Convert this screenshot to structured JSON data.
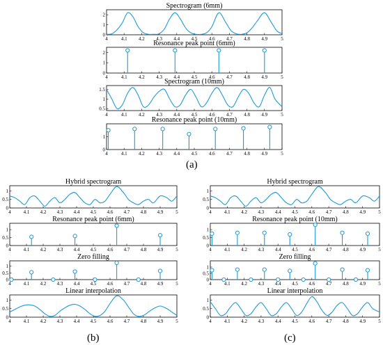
{
  "captions": {
    "a": "(a)",
    "b": "(b)",
    "c": "(c)"
  },
  "colors": {
    "line": "#1e9ad6",
    "axis": "#000000"
  },
  "chart_data": [
    {
      "id": "a1",
      "type": "line",
      "title": "Spectrogram (6mm)",
      "xlim": [
        4,
        5
      ],
      "ylim": [
        0,
        2.5
      ],
      "xticks": [
        4,
        4.1,
        4.2,
        4.3,
        4.4,
        4.5,
        4.6,
        4.7,
        4.8,
        4.9,
        5
      ],
      "yticks": [
        0,
        1,
        2
      ],
      "x": [
        4.0,
        4.03,
        4.06,
        4.09,
        4.12,
        4.15,
        4.18,
        4.21,
        4.24,
        4.27,
        4.3,
        4.33,
        4.36,
        4.39,
        4.42,
        4.45,
        4.48,
        4.51,
        4.54,
        4.57,
        4.6,
        4.64,
        4.68,
        4.71,
        4.74,
        4.77,
        4.8,
        4.83,
        4.86,
        4.9,
        4.94,
        4.97,
        5.0
      ],
      "y": [
        0.05,
        0.1,
        0.5,
        1.2,
        2.2,
        1.8,
        0.8,
        0.2,
        0.05,
        0.05,
        0.1,
        0.6,
        1.6,
        2.2,
        1.6,
        0.7,
        0.2,
        0.05,
        0.05,
        0.2,
        0.8,
        2.2,
        1.2,
        0.4,
        0.1,
        0.05,
        0.2,
        0.7,
        1.4,
        2.2,
        1.2,
        0.4,
        0.1
      ]
    },
    {
      "id": "a2",
      "type": "stem",
      "title": "Resonance peak point (6mm)",
      "xlim": [
        4,
        5
      ],
      "ylim": [
        0,
        2.5
      ],
      "xticks": [
        4,
        4.1,
        4.2,
        4.3,
        4.4,
        4.5,
        4.6,
        4.7,
        4.8,
        4.9,
        5
      ],
      "yticks": [
        0,
        1,
        2
      ],
      "x": [
        4.12,
        4.39,
        4.64,
        4.9
      ],
      "y": [
        2.2,
        2.2,
        2.2,
        2.2
      ]
    },
    {
      "id": "a3",
      "type": "line",
      "title": "Spectrogram (10mm)",
      "xlim": [
        4,
        5
      ],
      "ylim": [
        0.4,
        1.7
      ],
      "xticks": [
        4,
        4.1,
        4.2,
        4.3,
        4.4,
        4.5,
        4.6,
        4.7,
        4.8,
        4.9,
        5
      ],
      "yticks": [
        0.5,
        1,
        1.5
      ],
      "x": [
        4.0,
        4.03,
        4.06,
        4.09,
        4.12,
        4.15,
        4.18,
        4.21,
        4.24,
        4.27,
        4.3,
        4.33,
        4.36,
        4.39,
        4.42,
        4.45,
        4.48,
        4.51,
        4.54,
        4.57,
        4.6,
        4.63,
        4.66,
        4.69,
        4.72,
        4.75,
        4.78,
        4.81,
        4.84,
        4.87,
        4.9,
        4.93,
        4.96,
        5.0
      ],
      "y": [
        1.5,
        1.0,
        0.5,
        0.7,
        1.3,
        1.6,
        1.2,
        0.6,
        0.7,
        1.1,
        1.4,
        1.5,
        1.0,
        0.6,
        0.7,
        1.2,
        1.5,
        1.1,
        0.6,
        0.8,
        1.3,
        1.6,
        1.2,
        0.7,
        0.6,
        1.1,
        1.5,
        1.3,
        0.8,
        0.6,
        1.2,
        1.6,
        1.0,
        0.6
      ]
    },
    {
      "id": "a4",
      "type": "stem",
      "title": "Resonance peak point (10mm)",
      "xlim": [
        4,
        5
      ],
      "ylim": [
        0,
        2
      ],
      "xticks": [
        4,
        4.1,
        4.2,
        4.3,
        4.4,
        4.5,
        4.6,
        4.7,
        4.8,
        4.9,
        5
      ],
      "yticks": [
        0,
        1
      ],
      "x": [
        4.01,
        4.16,
        4.32,
        4.47,
        4.62,
        4.78,
        4.93
      ],
      "y": [
        1.5,
        1.6,
        1.6,
        1.2,
        1.6,
        1.65,
        1.75
      ]
    },
    {
      "id": "b1",
      "type": "line",
      "title": "Hybrid spectrogram",
      "xlim": [
        4,
        5
      ],
      "ylim": [
        0,
        1.3
      ],
      "xticks": [
        4,
        4.1,
        4.2,
        4.3,
        4.4,
        4.5,
        4.6,
        4.7,
        4.8,
        4.9,
        5
      ],
      "yticks": [
        0,
        0.5,
        1
      ],
      "x": [
        4.0,
        4.03,
        4.06,
        4.09,
        4.12,
        4.15,
        4.18,
        4.21,
        4.24,
        4.27,
        4.3,
        4.33,
        4.36,
        4.39,
        4.42,
        4.45,
        4.48,
        4.51,
        4.54,
        4.57,
        4.6,
        4.64,
        4.68,
        4.71,
        4.74,
        4.77,
        4.8,
        4.83,
        4.86,
        4.9,
        4.94,
        4.97,
        5.0
      ],
      "y": [
        0.7,
        0.6,
        0.4,
        0.2,
        0.6,
        0.7,
        0.4,
        0.1,
        0.4,
        0.6,
        0.3,
        0.5,
        0.8,
        0.9,
        0.6,
        0.3,
        0.2,
        0.5,
        0.3,
        0.4,
        0.8,
        1.25,
        0.9,
        0.5,
        0.3,
        0.2,
        0.4,
        0.5,
        0.3,
        0.7,
        0.6,
        0.4,
        0.7
      ]
    },
    {
      "id": "b2",
      "type": "stem",
      "title": "Resonance peak point (6mm)",
      "xlim": [
        4,
        5
      ],
      "ylim": [
        0,
        1.4
      ],
      "xticks": [
        4,
        4.1,
        4.2,
        4.3,
        4.4,
        4.5,
        4.6,
        4.7,
        4.8,
        4.9,
        5
      ],
      "yticks": [
        0,
        0.5,
        1
      ],
      "x": [
        4.13,
        4.39,
        4.64,
        4.9
      ],
      "y": [
        0.55,
        0.6,
        1.25,
        0.65
      ]
    },
    {
      "id": "b3",
      "type": "stem",
      "title": "Zero filling",
      "xlim": [
        4,
        5
      ],
      "ylim": [
        0,
        1.4
      ],
      "xticks": [
        4,
        4.1,
        4.2,
        4.3,
        4.4,
        4.5,
        4.6,
        4.7,
        4.8,
        4.9,
        5
      ],
      "yticks": [
        0,
        0.5,
        1
      ],
      "x": [
        4.01,
        4.13,
        4.26,
        4.39,
        4.51,
        4.64,
        4.77,
        4.9
      ],
      "y": [
        0,
        0.55,
        0,
        0.6,
        0,
        1.25,
        0,
        0.65
      ]
    },
    {
      "id": "b4",
      "type": "line",
      "title": "Linear interpolation",
      "xlim": [
        4,
        5
      ],
      "ylim": [
        0,
        1.3
      ],
      "xticks": [
        4,
        4.1,
        4.2,
        4.3,
        4.4,
        4.5,
        4.6,
        4.7,
        4.8,
        4.9,
        5
      ],
      "yticks": [
        0,
        0.5,
        1
      ],
      "x": [
        4.0,
        4.03,
        4.06,
        4.09,
        4.12,
        4.15,
        4.18,
        4.21,
        4.24,
        4.27,
        4.3,
        4.33,
        4.36,
        4.39,
        4.42,
        4.45,
        4.48,
        4.51,
        4.54,
        4.57,
        4.6,
        4.64,
        4.68,
        4.71,
        4.74,
        4.77,
        4.8,
        4.83,
        4.86,
        4.9,
        4.94,
        4.97,
        5.0
      ],
      "y": [
        0.3,
        0.45,
        0.6,
        0.7,
        0.72,
        0.65,
        0.45,
        0.2,
        0.05,
        0.1,
        0.35,
        0.55,
        0.7,
        0.75,
        0.65,
        0.45,
        0.2,
        0.05,
        0.1,
        0.35,
        0.8,
        1.25,
        1.0,
        0.6,
        0.2,
        0.05,
        0.1,
        0.3,
        0.5,
        0.65,
        0.5,
        0.3,
        0.1
      ]
    },
    {
      "id": "c1",
      "type": "line",
      "title": "Hybrid spectrogram",
      "xlim": [
        4,
        5
      ],
      "ylim": [
        0,
        1.3
      ],
      "xticks": [
        4,
        4.1,
        4.2,
        4.3,
        4.4,
        4.5,
        4.6,
        4.7,
        4.8,
        4.9,
        5
      ],
      "yticks": [
        0,
        0.5,
        1
      ],
      "x": [
        4.0,
        4.03,
        4.06,
        4.09,
        4.12,
        4.15,
        4.18,
        4.21,
        4.24,
        4.27,
        4.3,
        4.33,
        4.36,
        4.39,
        4.42,
        4.45,
        4.48,
        4.51,
        4.54,
        4.57,
        4.6,
        4.64,
        4.68,
        4.71,
        4.74,
        4.77,
        4.8,
        4.83,
        4.86,
        4.9,
        4.94,
        4.97,
        5.0
      ],
      "y": [
        0.7,
        0.6,
        0.4,
        0.2,
        0.6,
        0.7,
        0.4,
        0.1,
        0.4,
        0.6,
        0.3,
        0.5,
        0.8,
        0.9,
        0.6,
        0.3,
        0.2,
        0.5,
        0.3,
        0.4,
        0.8,
        1.25,
        0.9,
        0.5,
        0.3,
        0.2,
        0.4,
        0.5,
        0.3,
        0.7,
        0.6,
        0.4,
        0.7
      ]
    },
    {
      "id": "c2",
      "type": "stem",
      "title": "Resonance peak point (10mm)",
      "xlim": [
        4,
        5
      ],
      "ylim": [
        0,
        1.4
      ],
      "xticks": [
        4,
        4.1,
        4.2,
        4.3,
        4.4,
        4.5,
        4.6,
        4.7,
        4.8,
        4.9,
        5
      ],
      "yticks": [
        0,
        0.5,
        1
      ],
      "x": [
        4.01,
        4.16,
        4.32,
        4.47,
        4.62,
        4.78,
        4.93
      ],
      "y": [
        0.75,
        0.8,
        0.8,
        0.7,
        1.3,
        0.8,
        0.75
      ]
    },
    {
      "id": "c3",
      "type": "stem",
      "title": "Zero filling",
      "xlim": [
        4,
        5
      ],
      "ylim": [
        0,
        1.5
      ],
      "xticks": [
        4,
        4.1,
        4.2,
        4.3,
        4.4,
        4.5,
        4.6,
        4.7,
        4.8,
        4.9,
        5
      ],
      "yticks": [
        0,
        0.5,
        1
      ],
      "x": [
        4.01,
        4.08,
        4.16,
        4.24,
        4.32,
        4.4,
        4.47,
        4.55,
        4.62,
        4.7,
        4.78,
        4.86,
        4.93
      ],
      "y": [
        0.75,
        0,
        0.8,
        0,
        0.8,
        0,
        0.7,
        0,
        1.3,
        0,
        0.8,
        0,
        0.75
      ]
    },
    {
      "id": "c4",
      "type": "line",
      "title": "Linear interpolation",
      "xlim": [
        4,
        5
      ],
      "ylim": [
        0,
        1.3
      ],
      "xticks": [
        4,
        4.1,
        4.2,
        4.3,
        4.4,
        4.5,
        4.6,
        4.7,
        4.8,
        4.9,
        5
      ],
      "yticks": [
        0,
        0.5,
        1
      ],
      "x": [
        4.0,
        4.03,
        4.06,
        4.09,
        4.12,
        4.15,
        4.18,
        4.21,
        4.24,
        4.27,
        4.3,
        4.33,
        4.36,
        4.39,
        4.42,
        4.45,
        4.48,
        4.51,
        4.54,
        4.57,
        4.6,
        4.63,
        4.66,
        4.69,
        4.72,
        4.75,
        4.78,
        4.81,
        4.84,
        4.87,
        4.9,
        4.93,
        4.96,
        5.0
      ],
      "y": [
        0.9,
        0.5,
        0.1,
        0.2,
        0.6,
        0.85,
        0.5,
        0.1,
        0.2,
        0.6,
        0.85,
        0.5,
        0.1,
        0.2,
        0.6,
        0.85,
        0.5,
        0.1,
        0.3,
        0.8,
        1.2,
        0.9,
        0.4,
        0.1,
        0.3,
        0.7,
        0.85,
        0.5,
        0.1,
        0.2,
        0.6,
        0.85,
        0.5,
        0.3
      ]
    }
  ]
}
